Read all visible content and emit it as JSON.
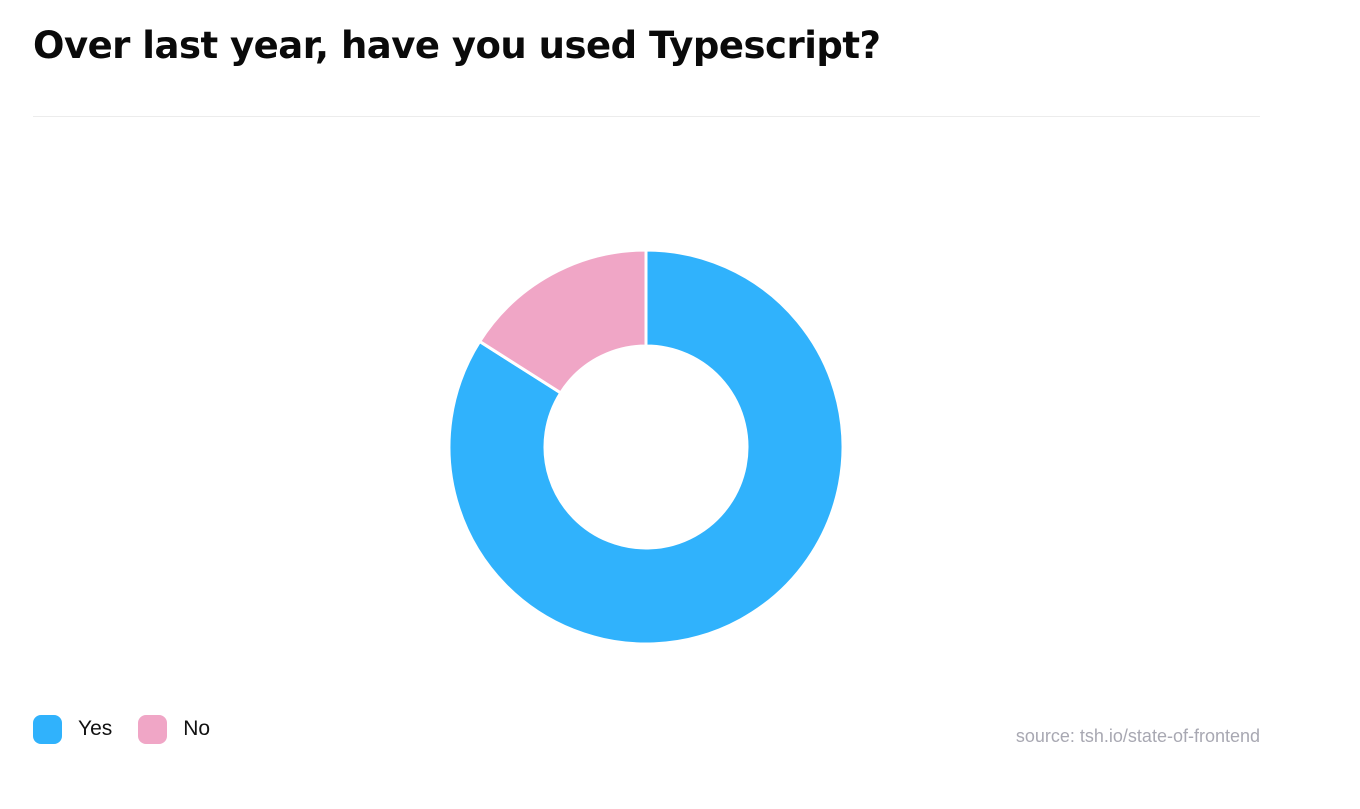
{
  "chart_data": {
    "type": "pie",
    "variant": "donut",
    "title": "Over last year, have you used Typescript?",
    "labels": [
      "Yes",
      "No"
    ],
    "values": [
      84,
      16
    ],
    "colors": [
      "#30b2fc",
      "#f0a6c6"
    ],
    "legend_position": "bottom-left",
    "source": "source: tsh.io/state-of-frontend"
  }
}
